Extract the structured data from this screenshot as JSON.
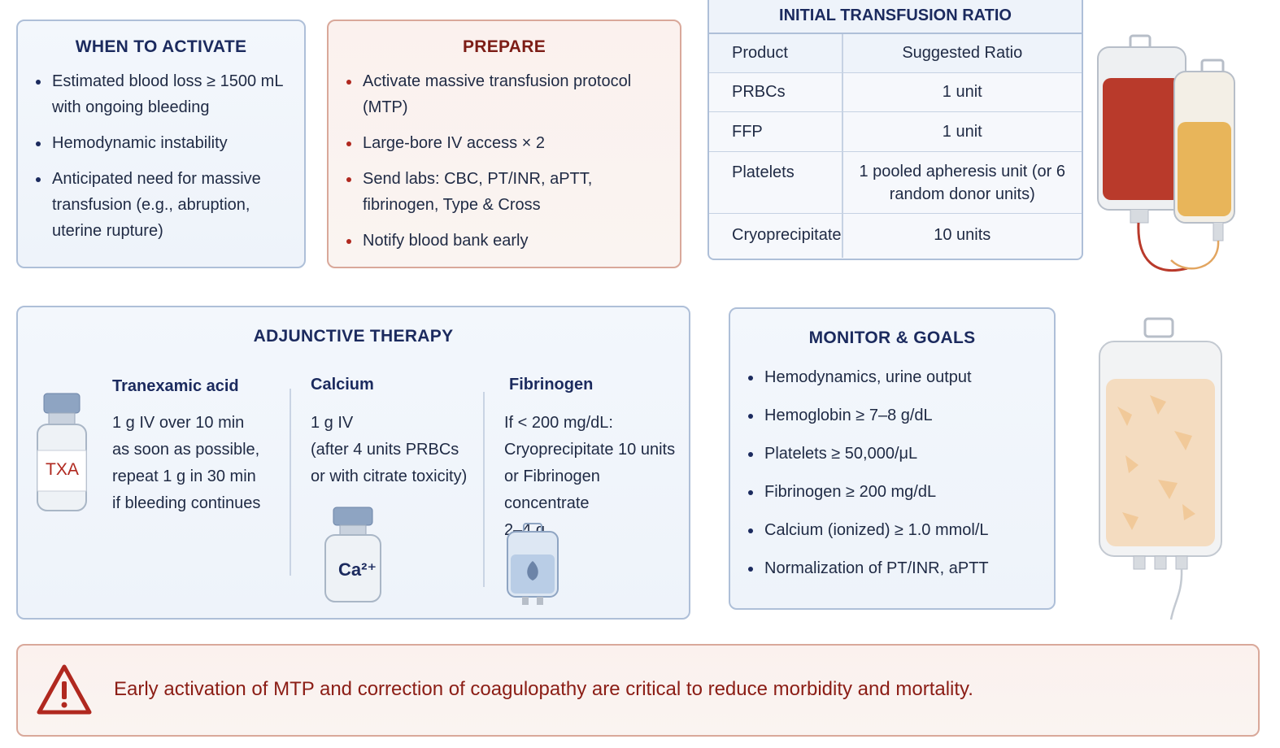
{
  "when_to_activate": {
    "title": "WHEN TO ACTIVATE",
    "items": [
      "Estimated blood loss ≥ 1500 mL with ongoing bleeding",
      "Hemodynamic instability",
      "Anticipated need for massive transfusion (e.g., abruption, uterine rupture)"
    ]
  },
  "prepare": {
    "title": "PREPARE",
    "items": [
      "Activate massive transfusion protocol (MTP)",
      "Large-bore IV access × 2",
      "Send labs: CBC, PT/INR, aPTT, fibrinogen, Type & Cross",
      "Notify blood bank early"
    ]
  },
  "ratio": {
    "title": "INITIAL TRANSFUSION RATIO",
    "headers": [
      "Product",
      "Suggested Ratio"
    ],
    "rows": [
      [
        "PRBCs",
        "1 unit"
      ],
      [
        "FFP",
        "1 unit"
      ],
      [
        "Platelets",
        "1 pooled apheresis unit (or 6 random donor units)"
      ],
      [
        "Cryoprecipitate",
        "10 units"
      ]
    ]
  },
  "adjunctive": {
    "title": "ADJUNCTIVE THERAPY",
    "txa": {
      "title": "Tranexamic acid",
      "text": [
        "1 g IV over 10 min",
        "as soon as possible,",
        "repeat 1 g in 30 min",
        "if bleeding continues"
      ],
      "vial_label": "TXA"
    },
    "calcium": {
      "title": "Calcium",
      "text": [
        "1 g IV",
        "(after 4 units PRBCs",
        "or with citrate toxicity)"
      ],
      "vial_label": "Ca²⁺"
    },
    "fibrinogen": {
      "title": "Fibrinogen",
      "text": [
        "If < 200 mg/dL:",
        "Cryoprecipitate 10 units",
        "or Fibrinogen concentrate",
        "2–4 g"
      ]
    }
  },
  "monitor": {
    "title": "MONITOR & GOALS",
    "items": [
      "Hemodynamics, urine output",
      "Hemoglobin ≥ 7–8 g/dL",
      "Platelets ≥ 50,000/μL",
      "Fibrinogen ≥ 200 mg/dL",
      "Calcium (ionized) ≥ 1.0 mmol/L",
      "Normalization of PT/INR, aPTT"
    ]
  },
  "warning": {
    "text": "Early activation of MTP and correction of coagulopathy are critical to reduce morbidity and mortality."
  },
  "colors": {
    "navy": "#1b2a5e",
    "dark_red": "#7c1d16",
    "blood_red": "#b93a2b",
    "plasma_yellow": "#e8b55a"
  }
}
